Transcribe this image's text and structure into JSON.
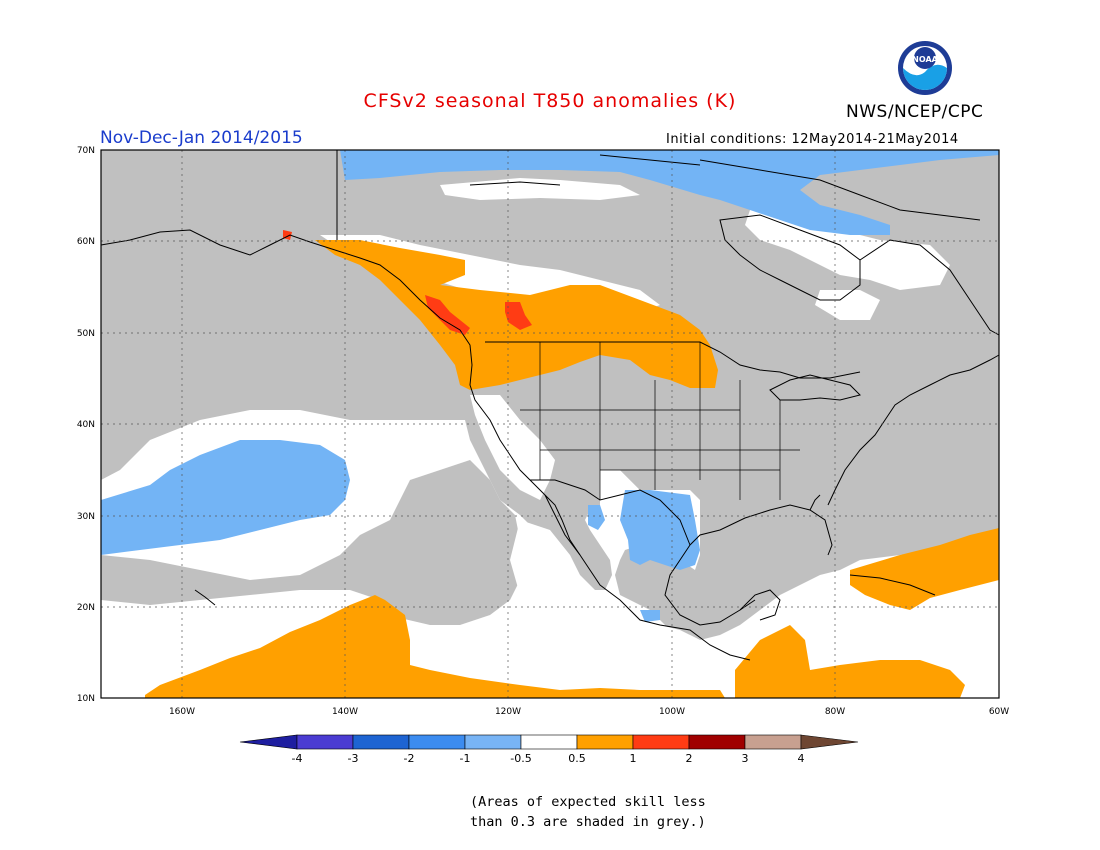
{
  "header": {
    "title": "CFSv2 seasonal T850 anomalies (K)",
    "period": "Nov-Dec-Jan 2014/2015",
    "agency": "NWS/NCEP/CPC",
    "initial_conditions": "Initial conditions: 12May2014-21May2014",
    "logo_text": "NOAA"
  },
  "map": {
    "lat_ticks": [
      "70N",
      "60N",
      "50N",
      "40N",
      "30N",
      "20N",
      "10N"
    ],
    "lon_ticks": [
      "160W",
      "140W",
      "120W",
      "100W",
      "80W",
      "60W"
    ],
    "colors": {
      "land_gray": "#c0c0c0",
      "light_blue": "#73b4f5",
      "orange": "#ffa000",
      "red": "#ff3c14"
    }
  },
  "colorbar": {
    "labels": [
      "-4",
      "-3",
      "-2",
      "-1",
      "-0.5",
      "0.5",
      "1",
      "2",
      "3",
      "4"
    ],
    "colors": [
      "#1e1ea0",
      "#4b3cd2",
      "#1e64d2",
      "#3c8cf0",
      "#78b4f5",
      "#ffffff",
      "#ffa000",
      "#ff3c14",
      "#a00000",
      "#c8a090",
      "#6e4632"
    ]
  },
  "footnote": {
    "line1": "(Areas of expected skill less",
    "line2": "than 0.3 are shaded in grey.)"
  }
}
